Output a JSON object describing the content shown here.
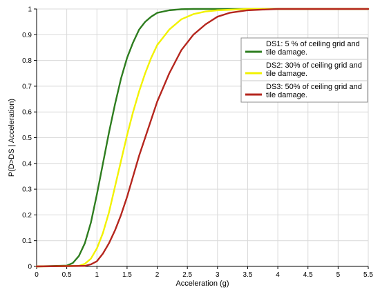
{
  "chart_data": {
    "type": "line",
    "xlabel": "Acceleration (g)",
    "ylabel": "P(D>DS | Acceleration)",
    "xlim": [
      0,
      5.5
    ],
    "ylim": [
      0,
      1
    ],
    "x_ticks": [
      "0",
      "0.5",
      "1",
      "1.5",
      "2",
      "2.5",
      "3",
      "3.5",
      "4",
      "4.5",
      "5",
      "5.5"
    ],
    "y_ticks": [
      "0",
      "0.1",
      "0.2",
      "0.3",
      "0.4",
      "0.5",
      "0.6",
      "0.7",
      "0.8",
      "0.9",
      "1"
    ],
    "grid": true,
    "legend_position": "top-right",
    "series": [
      {
        "name": "DS1: 5 % of ceiling grid and tile damage.",
        "legend_lines": [
          "DS1: 5 % of ceiling grid and",
          "tile damage."
        ],
        "color": "#2e7d1f",
        "x": [
          0,
          0.5,
          0.6,
          0.7,
          0.8,
          0.9,
          1.0,
          1.1,
          1.2,
          1.3,
          1.4,
          1.5,
          1.6,
          1.7,
          1.8,
          1.9,
          2.0,
          2.2,
          2.4,
          2.6,
          3.0,
          3.5,
          4.0,
          5.0,
          5.5
        ],
        "y": [
          0,
          0.003,
          0.013,
          0.04,
          0.09,
          0.17,
          0.28,
          0.4,
          0.52,
          0.63,
          0.73,
          0.81,
          0.87,
          0.92,
          0.95,
          0.97,
          0.985,
          0.995,
          0.999,
          1,
          1,
          1,
          1,
          1,
          1
        ]
      },
      {
        "name": "DS2: 30% of ceiling grid and tile damage.",
        "legend_lines": [
          "DS2: 30% of ceiling grid and",
          "tile damage."
        ],
        "color": "#f2f200",
        "x": [
          0,
          0.7,
          0.8,
          0.9,
          1.0,
          1.1,
          1.2,
          1.3,
          1.4,
          1.5,
          1.6,
          1.7,
          1.8,
          1.9,
          2.0,
          2.2,
          2.4,
          2.6,
          2.8,
          3.0,
          3.5,
          4.0,
          5.0,
          5.5
        ],
        "y": [
          0,
          0.002,
          0.01,
          0.03,
          0.07,
          0.13,
          0.21,
          0.31,
          0.41,
          0.51,
          0.6,
          0.68,
          0.75,
          0.81,
          0.86,
          0.92,
          0.96,
          0.98,
          0.99,
          0.995,
          1,
          1,
          1,
          1
        ]
      },
      {
        "name": "DS3: 50% of ceiling grid and tile damage.",
        "legend_lines": [
          "DS3: 50% of ceiling grid and",
          "tile damage."
        ],
        "color": "#b5261e",
        "x": [
          0,
          0.8,
          0.9,
          1.0,
          1.1,
          1.2,
          1.3,
          1.4,
          1.5,
          1.6,
          1.7,
          1.8,
          1.9,
          2.0,
          2.2,
          2.4,
          2.6,
          2.8,
          3.0,
          3.2,
          3.5,
          4.0,
          5.0,
          5.5
        ],
        "y": [
          0,
          0.002,
          0.008,
          0.02,
          0.05,
          0.09,
          0.14,
          0.2,
          0.27,
          0.35,
          0.43,
          0.5,
          0.57,
          0.64,
          0.75,
          0.84,
          0.9,
          0.94,
          0.97,
          0.985,
          0.995,
          1,
          1,
          1
        ]
      }
    ]
  }
}
